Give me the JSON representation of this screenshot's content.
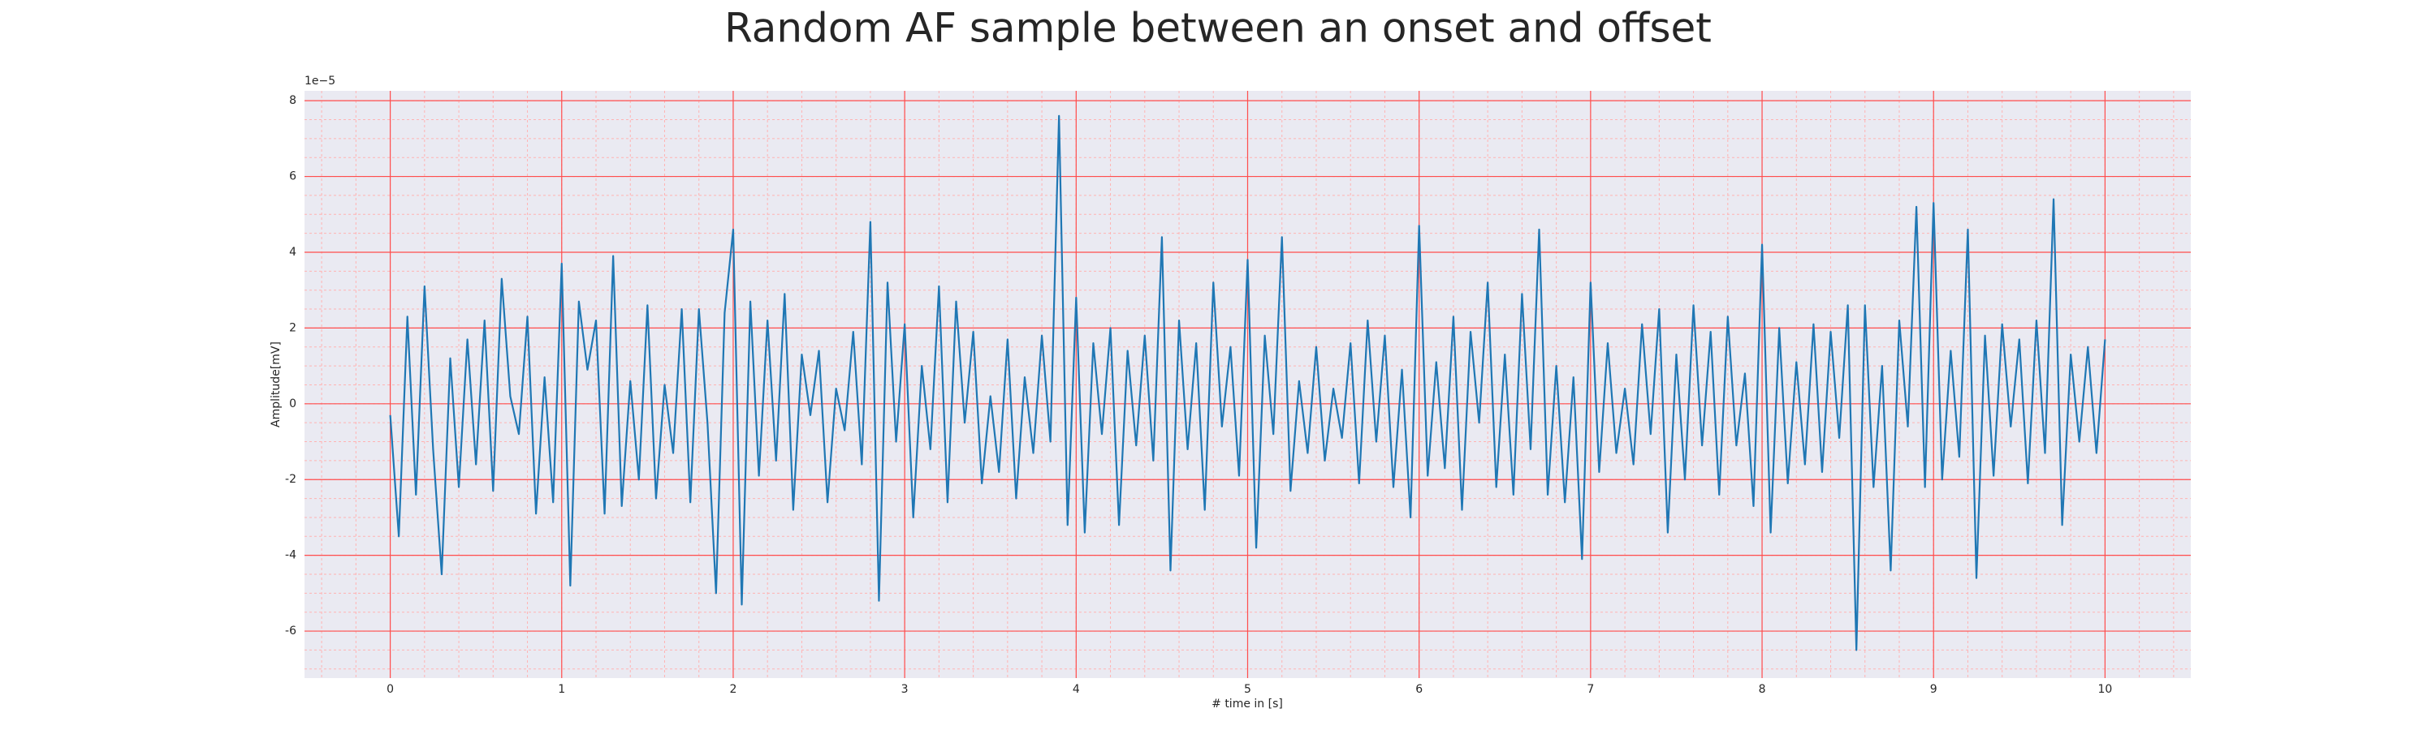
{
  "chart_data": {
    "type": "line",
    "title": "Random AF sample between an onset and offset",
    "xlabel": "# time in [s]",
    "ylabel": "Amplitude[mV]",
    "y_offset_label": "1e−5",
    "color": "#1f77b4",
    "grid": true,
    "minor_grid": true,
    "xlim": [
      -0.5,
      10.5
    ],
    "ylim": [
      -7.24,
      8.26
    ],
    "xticks": [
      0,
      1,
      2,
      3,
      4,
      5,
      6,
      7,
      8,
      9,
      10
    ],
    "yticks": [
      -6,
      -4,
      -2,
      0,
      2,
      4,
      6,
      8
    ],
    "x": [
      0,
      0.05,
      0.1,
      0.15,
      0.2,
      0.25,
      0.3,
      0.35,
      0.4,
      0.45,
      0.5,
      0.55,
      0.6,
      0.65,
      0.7,
      0.75,
      0.8,
      0.85,
      0.9,
      0.95,
      1,
      1.05,
      1.1,
      1.15,
      1.2,
      1.25,
      1.3,
      1.35,
      1.4,
      1.45,
      1.5,
      1.55,
      1.6,
      1.65,
      1.7,
      1.75,
      1.8,
      1.85,
      1.9,
      1.95,
      2,
      2.05,
      2.1,
      2.15,
      2.2,
      2.25,
      2.3,
      2.35,
      2.4,
      2.45,
      2.5,
      2.55,
      2.6,
      2.65,
      2.7,
      2.75,
      2.8,
      2.85,
      2.9,
      2.95,
      3,
      3.05,
      3.1,
      3.15,
      3.2,
      3.25,
      3.3,
      3.35,
      3.4,
      3.45,
      3.5,
      3.55,
      3.6,
      3.65,
      3.7,
      3.75,
      3.8,
      3.85,
      3.9,
      3.95,
      4,
      4.05,
      4.1,
      4.15,
      4.2,
      4.25,
      4.3,
      4.35,
      4.4,
      4.45,
      4.5,
      4.55,
      4.6,
      4.65,
      4.7,
      4.75,
      4.8,
      4.85,
      4.9,
      4.95,
      5,
      5.05,
      5.1,
      5.15,
      5.2,
      5.25,
      5.3,
      5.35,
      5.4,
      5.45,
      5.5,
      5.55,
      5.6,
      5.65,
      5.7,
      5.75,
      5.8,
      5.85,
      5.9,
      5.95,
      6,
      6.05,
      6.1,
      6.15,
      6.2,
      6.25,
      6.3,
      6.35,
      6.4,
      6.45,
      6.5,
      6.55,
      6.6,
      6.65,
      6.7,
      6.75,
      6.8,
      6.85,
      6.9,
      6.95,
      7,
      7.05,
      7.1,
      7.15,
      7.2,
      7.25,
      7.3,
      7.35,
      7.4,
      7.45,
      7.5,
      7.55,
      7.6,
      7.65,
      7.7,
      7.75,
      7.8,
      7.85,
      7.9,
      7.95,
      8,
      8.05,
      8.1,
      8.15,
      8.2,
      8.25,
      8.3,
      8.35,
      8.4,
      8.45,
      8.5,
      8.55,
      8.6,
      8.65,
      8.7,
      8.75,
      8.8,
      8.85,
      8.9,
      8.95,
      9,
      9.05,
      9.1,
      9.15,
      9.2,
      9.25,
      9.3,
      9.35,
      9.4,
      9.45,
      9.5,
      9.55,
      9.6,
      9.65,
      9.7,
      9.75,
      9.8,
      9.85,
      9.9,
      9.95,
      10
    ],
    "values": [
      -0.3,
      -3.5,
      2.3,
      -2.4,
      3.1,
      -1.2,
      -4.5,
      1.2,
      -2.2,
      1.7,
      -1.6,
      2.2,
      -2.3,
      3.3,
      0.2,
      -0.8,
      2.3,
      -2.9,
      0.7,
      -2.6,
      3.7,
      -4.8,
      2.7,
      0.9,
      2.2,
      -2.9,
      3.9,
      -2.7,
      0.6,
      -2.0,
      2.6,
      -2.5,
      0.5,
      -1.3,
      2.5,
      -2.6,
      2.5,
      -0.5,
      -5.0,
      2.4,
      4.6,
      -5.3,
      2.7,
      -1.9,
      2.2,
      -1.5,
      2.9,
      -2.8,
      1.3,
      -0.3,
      1.4,
      -2.6,
      0.4,
      -0.7,
      1.9,
      -1.6,
      4.8,
      -5.2,
      3.2,
      -1.0,
      2.1,
      -3.0,
      1.0,
      -1.2,
      3.1,
      -2.6,
      2.7,
      -0.5,
      1.9,
      -2.1,
      0.2,
      -1.8,
      1.7,
      -2.5,
      0.7,
      -1.3,
      1.8,
      -1.0,
      7.6,
      -3.2,
      2.8,
      -3.4,
      1.6,
      -0.8,
      2.0,
      -3.2,
      1.4,
      -1.1,
      1.8,
      -1.5,
      4.4,
      -4.4,
      2.2,
      -1.2,
      1.6,
      -2.8,
      3.2,
      -0.6,
      1.5,
      -1.9,
      3.8,
      -3.8,
      1.8,
      -0.8,
      4.4,
      -2.3,
      0.6,
      -1.3,
      1.5,
      -1.5,
      0.4,
      -0.9,
      1.6,
      -2.1,
      2.2,
      -1.0,
      1.8,
      -2.2,
      0.9,
      -3.0,
      4.7,
      -1.9,
      1.1,
      -1.7,
      2.3,
      -2.8,
      1.9,
      -0.5,
      3.2,
      -2.2,
      1.3,
      -2.4,
      2.9,
      -1.2,
      4.6,
      -2.4,
      1.0,
      -2.6,
      0.7,
      -4.1,
      3.2,
      -1.8,
      1.6,
      -1.3,
      0.4,
      -1.6,
      2.1,
      -0.8,
      2.5,
      -3.4,
      1.3,
      -2.0,
      2.6,
      -1.1,
      1.9,
      -2.4,
      2.3,
      -1.1,
      0.8,
      -2.7,
      4.2,
      -3.4,
      2.0,
      -2.1,
      1.1,
      -1.6,
      2.1,
      -1.8,
      1.9,
      -0.9,
      2.6,
      -6.5,
      2.6,
      -2.2,
      1.0,
      -4.4,
      2.2,
      -0.6,
      5.2,
      -2.2,
      5.3,
      -2.0,
      1.4,
      -1.4,
      4.6,
      -4.6,
      1.8,
      -1.9,
      2.1,
      -0.6,
      1.7,
      -2.1,
      2.2,
      -1.3,
      5.4,
      -3.2,
      1.3,
      -1.0,
      1.5,
      -1.3,
      1.7
    ]
  }
}
